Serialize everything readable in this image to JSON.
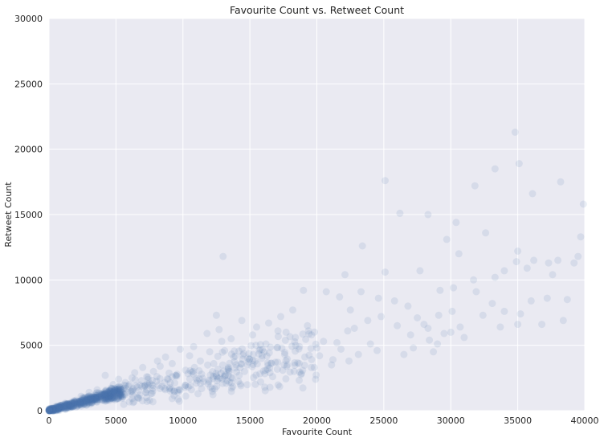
{
  "chart_data": {
    "type": "scatter",
    "title": "Favourite Count vs. Retweet Count",
    "xlabel": "Favourite Count",
    "ylabel": "Retweet Count",
    "xlim": [
      0,
      40000
    ],
    "ylim": [
      0,
      30000
    ],
    "xticks": [
      0,
      5000,
      10000,
      15000,
      20000,
      25000,
      30000,
      35000,
      40000
    ],
    "yticks": [
      0,
      5000,
      10000,
      15000,
      20000,
      25000,
      30000
    ],
    "grid": true,
    "legend": "none",
    "colors": {
      "background": "#EAEAF2",
      "grid": "#FFFFFF",
      "point": "#4C72B0"
    },
    "point_alpha": 0.12,
    "points": [
      [
        34800,
        21300
      ],
      [
        25100,
        17600
      ],
      [
        31800,
        17200
      ],
      [
        33300,
        18500
      ],
      [
        35100,
        18900
      ],
      [
        38200,
        17500
      ],
      [
        39900,
        15800
      ],
      [
        36100,
        16600
      ],
      [
        26200,
        15100
      ],
      [
        28300,
        15000
      ],
      [
        30400,
        14400
      ],
      [
        29700,
        13100
      ],
      [
        32600,
        13600
      ],
      [
        39700,
        13300
      ],
      [
        35000,
        12200
      ],
      [
        23400,
        12600
      ],
      [
        13000,
        11800
      ],
      [
        30600,
        12000
      ],
      [
        34900,
        11400
      ],
      [
        36200,
        11500
      ],
      [
        37300,
        11300
      ],
      [
        38000,
        11500
      ],
      [
        39500,
        11800
      ],
      [
        39200,
        11300
      ],
      [
        34000,
        10700
      ],
      [
        35700,
        10900
      ],
      [
        31700,
        10000
      ],
      [
        33300,
        10200
      ],
      [
        37600,
        10400
      ],
      [
        22100,
        10400
      ],
      [
        25100,
        10600
      ],
      [
        27700,
        10700
      ],
      [
        29200,
        9200
      ],
      [
        30200,
        9400
      ],
      [
        31900,
        9100
      ],
      [
        36000,
        8400
      ],
      [
        37200,
        8600
      ],
      [
        38700,
        8500
      ],
      [
        33100,
        8200
      ],
      [
        34000,
        7600
      ],
      [
        35200,
        7400
      ],
      [
        32400,
        7300
      ],
      [
        38400,
        6900
      ],
      [
        36800,
        6600
      ],
      [
        35000,
        6600
      ],
      [
        33700,
        6400
      ],
      [
        30700,
        6400
      ],
      [
        29500,
        5900
      ],
      [
        31000,
        5600
      ],
      [
        28400,
        5400
      ],
      [
        27200,
        4800
      ],
      [
        28700,
        4500
      ],
      [
        26500,
        4300
      ],
      [
        24500,
        4600
      ],
      [
        22400,
        3800
      ],
      [
        21100,
        3500
      ],
      [
        19800,
        3300
      ],
      [
        18300,
        3000
      ],
      [
        16700,
        2600
      ],
      [
        15800,
        2200
      ],
      [
        14200,
        2700
      ],
      [
        13100,
        2600
      ],
      [
        12500,
        7300
      ],
      [
        14400,
        6900
      ],
      [
        15500,
        6400
      ],
      [
        16400,
        6700
      ],
      [
        17300,
        7200
      ],
      [
        18200,
        7700
      ],
      [
        19000,
        9200
      ],
      [
        20700,
        9100
      ],
      [
        21700,
        8700
      ],
      [
        22500,
        7700
      ],
      [
        23300,
        9100
      ],
      [
        24600,
        8600
      ],
      [
        25800,
        8400
      ],
      [
        26800,
        8000
      ],
      [
        27500,
        7100
      ],
      [
        28300,
        6300
      ],
      [
        29100,
        7300
      ],
      [
        30100,
        7600
      ],
      [
        24000,
        5100
      ],
      [
        23100,
        4300
      ],
      [
        21800,
        4700
      ],
      [
        20500,
        5300
      ],
      [
        19600,
        5800
      ],
      [
        18700,
        4900
      ],
      [
        17600,
        4300
      ],
      [
        16900,
        3700
      ],
      [
        15700,
        4600
      ],
      [
        14800,
        3500
      ],
      [
        13800,
        4100
      ],
      [
        12900,
        5300
      ],
      [
        12000,
        4500
      ],
      [
        11300,
        3800
      ],
      [
        10500,
        4200
      ],
      [
        9800,
        4700
      ],
      [
        9200,
        3600
      ],
      [
        8700,
        4100
      ],
      [
        8300,
        3400
      ],
      [
        7800,
        3000
      ],
      [
        7300,
        2600
      ],
      [
        6900,
        2300
      ],
      [
        6400,
        2900
      ],
      [
        6000,
        2000
      ],
      [
        5600,
        1700
      ],
      [
        5200,
        2400
      ],
      [
        4800,
        2000
      ],
      [
        4500,
        1500
      ],
      [
        4200,
        2700
      ],
      [
        3900,
        1300
      ],
      [
        3600,
        1600
      ],
      [
        3300,
        1100
      ],
      [
        3000,
        1400
      ],
      [
        2700,
        900
      ],
      [
        2400,
        1100
      ],
      [
        2100,
        700
      ],
      [
        1800,
        600
      ],
      [
        1500,
        500
      ],
      [
        1200,
        400
      ],
      [
        900,
        300
      ],
      [
        600,
        200
      ],
      [
        300,
        100
      ],
      [
        11800,
        5900
      ],
      [
        12700,
        6200
      ],
      [
        13600,
        5500
      ],
      [
        15200,
        5800
      ],
      [
        16200,
        5100
      ],
      [
        17100,
        6100
      ],
      [
        18400,
        5600
      ],
      [
        19300,
        6500
      ],
      [
        20200,
        4200
      ],
      [
        21200,
        3900
      ],
      [
        22800,
        6300
      ],
      [
        23800,
        6900
      ],
      [
        24800,
        7200
      ],
      [
        26000,
        6500
      ],
      [
        27000,
        5800
      ],
      [
        28000,
        6600
      ],
      [
        29000,
        5100
      ],
      [
        30000,
        6000
      ],
      [
        13400,
        3300
      ],
      [
        14600,
        3000
      ],
      [
        15400,
        3800
      ],
      [
        16500,
        2900
      ],
      [
        17800,
        3500
      ],
      [
        19100,
        4100
      ],
      [
        20000,
        4800
      ],
      [
        21500,
        5200
      ],
      [
        22300,
        6100
      ],
      [
        10200,
        3100
      ],
      [
        10800,
        4900
      ],
      [
        11400,
        2800
      ],
      [
        12300,
        3600
      ],
      [
        9500,
        2700
      ],
      [
        8900,
        2400
      ],
      [
        8100,
        3800
      ],
      [
        7500,
        2100
      ],
      [
        7000,
        3300
      ],
      [
        6600,
        1800
      ],
      [
        6200,
        2500
      ]
    ]
  }
}
